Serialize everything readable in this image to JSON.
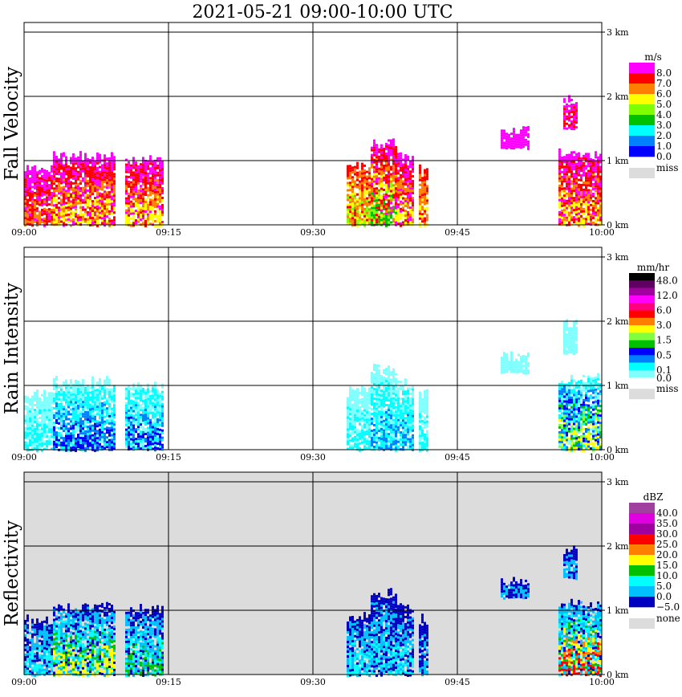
{
  "title": "2021-05-21   09:00-10:00 UTC",
  "chart_data": [
    {
      "type": "heatmap",
      "title": "Fall Velocity",
      "ylabel": "Fall Velocity",
      "x_ticks": [
        "09:00",
        "09:15",
        "09:30",
        "09:45",
        "10:00"
      ],
      "y_ticks": [
        "0 km",
        "1 km",
        "2 km",
        "3 km"
      ],
      "xlim_minutes": [
        0,
        60
      ],
      "ylim_km": [
        0,
        3.15
      ],
      "grid": true,
      "background": "#ffffff",
      "colorbar": {
        "unit": "m/s",
        "labels": [
          "8.0",
          "7.0",
          "6.0",
          "5.0",
          "4.0",
          "3.0",
          "2.0",
          "1.0",
          "0.0"
        ],
        "colors": [
          "#ff00ff",
          "#ff0000",
          "#ff8000",
          "#ffff00",
          "#80ff00",
          "#00c000",
          "#00ffff",
          "#0080ff",
          "#0000ff"
        ],
        "missing_label": "miss",
        "missing_color": "#dcdcdc"
      },
      "echoes": [
        {
          "t": [
            0,
            3
          ],
          "top_km": 0.95,
          "levels": [
            0,
            2
          ]
        },
        {
          "t": [
            3,
            9.3
          ],
          "top_km": 1.15,
          "levels": [
            0,
            3
          ]
        },
        {
          "t": [
            10.5,
            14.5
          ],
          "top_km": 1.1,
          "levels": [
            0,
            3
          ]
        },
        {
          "t": [
            33.5,
            36
          ],
          "top_km": 1.0,
          "levels": [
            1,
            4
          ]
        },
        {
          "t": [
            36,
            38.5
          ],
          "top_km": 1.35,
          "levels": [
            0,
            5
          ]
        },
        {
          "t": [
            38.5,
            40.3
          ],
          "top_km": 1.15,
          "levels": [
            0,
            3
          ]
        },
        {
          "t": [
            41,
            42
          ],
          "top_km": 0.95,
          "levels": [
            1,
            3
          ]
        },
        {
          "t": [
            55.5,
            60
          ],
          "top_km": 1.2,
          "levels": [
            0,
            3
          ]
        },
        {
          "t": [
            49.5,
            52.5
          ],
          "top_km": 1.55,
          "bottom_km": 1.2,
          "levels": [
            0,
            0
          ]
        },
        {
          "t": [
            56,
            57.5
          ],
          "top_km": 2.05,
          "bottom_km": 1.5,
          "levels": [
            0,
            1
          ]
        }
      ]
    },
    {
      "type": "heatmap",
      "title": "Rain Intensity",
      "ylabel": "Rain Intensity",
      "x_ticks": [
        "09:00",
        "09:15",
        "09:30",
        "09:45",
        "10:00"
      ],
      "y_ticks": [
        "0 km",
        "1 km",
        "2 km",
        "3 km"
      ],
      "xlim_minutes": [
        0,
        60
      ],
      "ylim_km": [
        0,
        3.15
      ],
      "grid": true,
      "background": "#ffffff",
      "colorbar": {
        "unit": "mm/hr",
        "labels": [
          "48.0",
          "12.0",
          "6.0",
          "3.0",
          "1.5",
          "0.5",
          "0.1",
          "0.0"
        ],
        "colors": [
          "#000000",
          "#600060",
          "#a000a0",
          "#ff00ff",
          "#ff0080",
          "#ff0000",
          "#ff8000",
          "#ffff00",
          "#80ff40",
          "#00c000",
          "#0000ff",
          "#0080ff",
          "#00ffff",
          "#80ffff"
        ],
        "missing_label": "miss",
        "missing_color": "#dcdcdc"
      },
      "echoes": [
        {
          "t": [
            0,
            3
          ],
          "top_km": 0.95,
          "levels": [
            13,
            12
          ]
        },
        {
          "t": [
            3,
            9.3
          ],
          "top_km": 1.15,
          "levels": [
            13,
            10
          ]
        },
        {
          "t": [
            10.5,
            14.5
          ],
          "top_km": 1.1,
          "levels": [
            13,
            10
          ]
        },
        {
          "t": [
            33.5,
            36
          ],
          "top_km": 1.0,
          "levels": [
            13,
            12
          ]
        },
        {
          "t": [
            36,
            38.5
          ],
          "top_km": 1.35,
          "levels": [
            13,
            11
          ]
        },
        {
          "t": [
            38.5,
            40.3
          ],
          "top_km": 1.15,
          "levels": [
            13,
            11
          ]
        },
        {
          "t": [
            41,
            42
          ],
          "top_km": 0.95,
          "levels": [
            13,
            12
          ]
        },
        {
          "t": [
            55.5,
            60
          ],
          "top_km": 1.2,
          "levels": [
            13,
            7
          ]
        },
        {
          "t": [
            49.5,
            52.5
          ],
          "top_km": 1.55,
          "bottom_km": 1.2,
          "levels": [
            13,
            13
          ]
        },
        {
          "t": [
            56,
            57.5
          ],
          "top_km": 2.05,
          "bottom_km": 1.5,
          "levels": [
            13,
            13
          ]
        }
      ]
    },
    {
      "type": "heatmap",
      "title": "Reflectivity",
      "ylabel": "Reflectivity",
      "x_ticks": [
        "09:00",
        "09:15",
        "09:30",
        "09:45",
        "10:00"
      ],
      "y_ticks": [
        "0 km",
        "1 km",
        "2 km",
        "3 km"
      ],
      "xlim_minutes": [
        0,
        60
      ],
      "ylim_km": [
        0,
        3.15
      ],
      "grid": true,
      "background": "#dcdcdc",
      "colorbar": {
        "unit": "dBZ",
        "labels": [
          "40.0",
          "35.0",
          "30.0",
          "25.0",
          "20.0",
          "15.0",
          "10.0",
          "5.0",
          "0.0",
          "−5.0"
        ],
        "colors": [
          "#a040a0",
          "#e000e0",
          "#a000a0",
          "#ff0000",
          "#ff8000",
          "#ffff00",
          "#00c000",
          "#00ffff",
          "#00c0ff",
          "#0000c0"
        ],
        "missing_label": "none",
        "missing_color": "#dcdcdc"
      },
      "echoes": [
        {
          "t": [
            0,
            3
          ],
          "top_km": 0.95,
          "levels": [
            9,
            7
          ]
        },
        {
          "t": [
            3,
            9.3
          ],
          "top_km": 1.15,
          "levels": [
            9,
            5
          ]
        },
        {
          "t": [
            10.5,
            14.5
          ],
          "top_km": 1.1,
          "levels": [
            9,
            6
          ]
        },
        {
          "t": [
            33.5,
            36
          ],
          "top_km": 1.0,
          "levels": [
            9,
            7
          ]
        },
        {
          "t": [
            36,
            38.5
          ],
          "top_km": 1.35,
          "levels": [
            9,
            7
          ]
        },
        {
          "t": [
            38.5,
            40.3
          ],
          "top_km": 1.15,
          "levels": [
            9,
            7
          ]
        },
        {
          "t": [
            41,
            42
          ],
          "top_km": 0.95,
          "levels": [
            9,
            8
          ]
        },
        {
          "t": [
            55.5,
            60
          ],
          "top_km": 1.2,
          "levels": [
            9,
            3
          ]
        },
        {
          "t": [
            49.5,
            52.5
          ],
          "top_km": 1.55,
          "bottom_km": 1.2,
          "levels": [
            9,
            8
          ]
        },
        {
          "t": [
            56,
            57.5
          ],
          "top_km": 2.05,
          "bottom_km": 1.5,
          "levels": [
            9,
            8
          ]
        }
      ]
    }
  ]
}
